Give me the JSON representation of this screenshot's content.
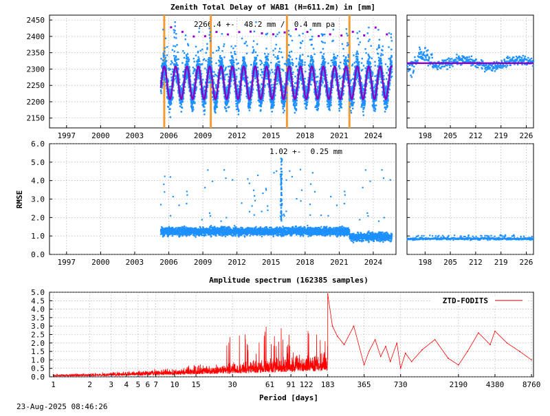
{
  "timestamp": "23-Aug-2025 08:46:26",
  "chart_data": [
    {
      "type": "scatter",
      "panel": "ztd-timeseries",
      "title": "Zenith Total Delay of WAB1 (H=611.2m) in [mm]",
      "annotation": "2266.4 +-  48.2 mm /  0.4 mm pa",
      "ylim": [
        2120,
        2465
      ],
      "yticks": [
        2150,
        2200,
        2250,
        2300,
        2350,
        2400,
        2450
      ],
      "xlim": [
        1995.5,
        2026.0
      ],
      "xticks": [
        1997,
        2000,
        2003,
        2006,
        2009,
        2012,
        2015,
        2018,
        2021,
        2024
      ],
      "data_start_year": 2005.3,
      "data_end_year": 2025.64,
      "mean": 2266.4,
      "stddev": 48.2,
      "trend_mm_per_year": 0.4,
      "seasonal_fit": {
        "mean": 2258,
        "amplitude": 50,
        "peak_fraction_of_year": 0.6
      },
      "equipment_changes": [
        2005.6,
        2009.7,
        2016.4,
        2021.9
      ],
      "colors": {
        "points": "#1e90ff",
        "fit": "#8b00c0",
        "changes": "#f39c33",
        "outliers": "#9400d3"
      }
    },
    {
      "type": "scatter",
      "panel": "ztd-recent",
      "ylim": [
        2120,
        2465
      ],
      "xlim": [
        193,
        228
      ],
      "xticks": [
        198,
        205,
        212,
        219,
        226
      ],
      "level": 2318,
      "colors": {
        "points": "#1e90ff",
        "fit": "#8b00c0"
      }
    },
    {
      "type": "scatter",
      "panel": "rmse-timeseries",
      "ylabel": "RMSE",
      "annotation": "1.02 +-  0.25 mm",
      "ylim": [
        0.0,
        6.0
      ],
      "yticks": [
        "0.0",
        "1.0",
        "2.0",
        "3.0",
        "4.0",
        "5.0",
        "6.0"
      ],
      "xlim": [
        1995.5,
        2026.0
      ],
      "xticks": [
        1997,
        2000,
        2003,
        2006,
        2009,
        2012,
        2015,
        2018,
        2021,
        2024
      ],
      "typical_value": 1.25,
      "later_value": 0.95,
      "change_year": 2021.9,
      "spike": {
        "year": 2015.9,
        "peak": 5.2
      },
      "colors": {
        "points": "#1e90ff"
      }
    },
    {
      "type": "scatter",
      "panel": "rmse-recent",
      "ylim": [
        0.0,
        6.0
      ],
      "xlim": [
        193,
        228
      ],
      "xticks": [
        198,
        205,
        212,
        219,
        226
      ],
      "level": 0.85,
      "colors": {
        "points": "#1e90ff"
      }
    },
    {
      "type": "line",
      "panel": "amplitude-spectrum",
      "title": "Amplitude spectrum (162385 samples)",
      "xlabel": "Period [days]",
      "legend": "ZTD-FODITS",
      "legend_position": "top-right",
      "xscale": "log",
      "xlim": [
        0.93,
        9100
      ],
      "ylim": [
        0.0,
        5.0
      ],
      "yticks": [
        "0.0",
        "0.5",
        "1.0",
        "1.5",
        "2.0",
        "2.5",
        "3.0",
        "3.5",
        "4.0",
        "4.5",
        "5.0"
      ],
      "xticks": [
        1,
        2,
        3,
        4,
        5,
        6,
        7,
        10,
        15,
        30,
        61,
        91,
        122,
        183,
        365,
        730,
        2190,
        4380,
        8760
      ],
      "xtick_labels": [
        "1",
        "2",
        "3",
        "4",
        "5",
        "6",
        "7",
        "10",
        "15",
        "30",
        "61",
        "91",
        "122",
        "183",
        "365",
        "730",
        "2190",
        "4380",
        "8760"
      ],
      "x": [
        183,
        200,
        220,
        250,
        300,
        365,
        400,
        450,
        500,
        550,
        600,
        680,
        730,
        800,
        900,
        1100,
        1400,
        1800,
        2190,
        2600,
        3200,
        4000,
        4380,
        5500,
        7000,
        8760
      ],
      "values": [
        4.9,
        3.0,
        2.4,
        1.9,
        3.0,
        0.7,
        1.5,
        2.2,
        1.2,
        1.8,
        0.9,
        2.0,
        0.5,
        1.4,
        0.9,
        1.6,
        2.2,
        1.1,
        0.7,
        1.5,
        2.6,
        1.9,
        2.7,
        2.0,
        1.5,
        1.0
      ],
      "colors": {
        "line": "#ff0000",
        "legend_line": "#cc0000"
      }
    }
  ]
}
